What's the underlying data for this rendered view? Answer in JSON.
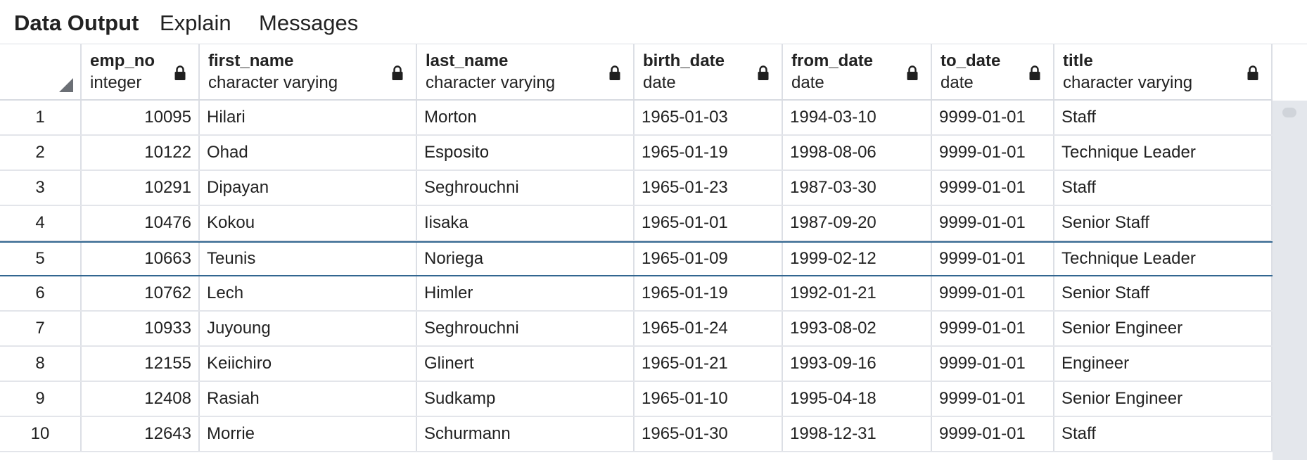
{
  "tabs": [
    {
      "label": "Data Output",
      "active": true
    },
    {
      "label": "Explain",
      "active": false
    },
    {
      "label": "Messages",
      "active": false
    }
  ],
  "columns": [
    {
      "name": "emp_no",
      "type": "integer"
    },
    {
      "name": "first_name",
      "type": "character varying"
    },
    {
      "name": "last_name",
      "type": "character varying"
    },
    {
      "name": "birth_date",
      "type": "date"
    },
    {
      "name": "from_date",
      "type": "date"
    },
    {
      "name": "to_date",
      "type": "date"
    },
    {
      "name": "title",
      "type": "character varying"
    }
  ],
  "rows": [
    {
      "n": "1",
      "cells": [
        "10095",
        "Hilari",
        "Morton",
        "1965-01-03",
        "1994-03-10",
        "9999-01-01",
        "Staff"
      ]
    },
    {
      "n": "2",
      "cells": [
        "10122",
        "Ohad",
        "Esposito",
        "1965-01-19",
        "1998-08-06",
        "9999-01-01",
        "Technique Leader"
      ]
    },
    {
      "n": "3",
      "cells": [
        "10291",
        "Dipayan",
        "Seghrouchni",
        "1965-01-23",
        "1987-03-30",
        "9999-01-01",
        "Staff"
      ]
    },
    {
      "n": "4",
      "cells": [
        "10476",
        "Kokou",
        "Iisaka",
        "1965-01-01",
        "1987-09-20",
        "9999-01-01",
        "Senior Staff"
      ]
    },
    {
      "n": "5",
      "cells": [
        "10663",
        "Teunis",
        "Noriega",
        "1965-01-09",
        "1999-02-12",
        "9999-01-01",
        "Technique Leader"
      ]
    },
    {
      "n": "6",
      "cells": [
        "10762",
        "Lech",
        "Himler",
        "1965-01-19",
        "1992-01-21",
        "9999-01-01",
        "Senior Staff"
      ]
    },
    {
      "n": "7",
      "cells": [
        "10933",
        "Juyoung",
        "Seghrouchni",
        "1965-01-24",
        "1993-08-02",
        "9999-01-01",
        "Senior Engineer"
      ]
    },
    {
      "n": "8",
      "cells": [
        "12155",
        "Keiichiro",
        "Glinert",
        "1965-01-21",
        "1993-09-16",
        "9999-01-01",
        "Engineer"
      ]
    },
    {
      "n": "9",
      "cells": [
        "12408",
        "Rasiah",
        "Sudkamp",
        "1965-01-10",
        "1995-04-18",
        "9999-01-01",
        "Senior Engineer"
      ]
    },
    {
      "n": "10",
      "cells": [
        "12643",
        "Morrie",
        "Schurmann",
        "1965-01-30",
        "1998-12-31",
        "9999-01-01",
        "Staff"
      ]
    }
  ],
  "selected_row": "5",
  "colors": {
    "selection_border": "#326690",
    "grid_line": "#dcdfe5",
    "scrollbar_track": "#e4e7ec"
  },
  "icons": {
    "column_lock": "lock-icon",
    "select_all": "select-all-corner-icon"
  }
}
